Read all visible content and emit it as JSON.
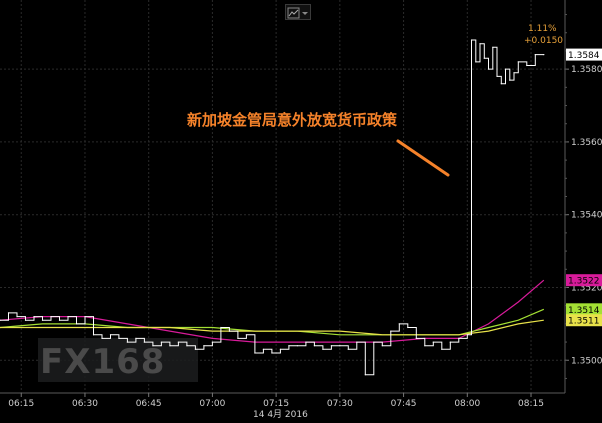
{
  "chart_data": {
    "type": "line",
    "title": "",
    "xlabel": "",
    "ylabel": "",
    "date_label": "14 4月 2016",
    "x_ticks": [
      "06:15",
      "06:30",
      "06:45",
      "07:00",
      "07:15",
      "07:30",
      "07:45",
      "08:00",
      "08:15"
    ],
    "y_ticks": [
      "1.3500",
      "1.3520",
      "1.3540",
      "1.3560",
      "1.3580"
    ],
    "ylim": [
      1.3491,
      1.3599
    ],
    "xlim": [
      "06:10",
      "08:23"
    ],
    "grid": true,
    "annotation": "新加坡金管局意外放宽货币政策",
    "change_pct": "1.11%",
    "change_abs": "+0.0150",
    "price_badges": [
      {
        "label": "1.3584",
        "value": 1.3584,
        "color": "#ffffff"
      },
      {
        "label": "1.3522",
        "value": 1.3522,
        "color": "#d81b9a"
      },
      {
        "label": "1.3514",
        "value": 1.3514,
        "color": "#a4e034"
      },
      {
        "label": "1.3511",
        "value": 1.3511,
        "color": "#e8e24a"
      }
    ],
    "price_series": {
      "name": "",
      "color": "#ffffff",
      "x": [
        "06:10",
        "06:12",
        "06:14",
        "06:16",
        "06:18",
        "06:20",
        "06:22",
        "06:24",
        "06:26",
        "06:28",
        "06:30",
        "06:32",
        "06:34",
        "06:36",
        "06:38",
        "06:40",
        "06:42",
        "06:44",
        "06:46",
        "06:48",
        "06:50",
        "06:52",
        "06:54",
        "06:56",
        "06:58",
        "07:00",
        "07:02",
        "07:04",
        "07:06",
        "07:08",
        "07:10",
        "07:12",
        "07:14",
        "07:16",
        "07:18",
        "07:20",
        "07:22",
        "07:24",
        "07:26",
        "07:28",
        "07:30",
        "07:32",
        "07:34",
        "07:36",
        "07:38",
        "07:40",
        "07:42",
        "07:44",
        "07:46",
        "07:48",
        "07:50",
        "07:52",
        "07:54",
        "07:56",
        "07:58",
        "08:00",
        "08:01",
        "08:02",
        "08:03",
        "08:04",
        "08:05",
        "08:06",
        "08:07",
        "08:08",
        "08:09",
        "08:10",
        "08:11",
        "08:12",
        "08:14",
        "08:16",
        "08:18"
      ],
      "values": [
        1.3511,
        1.3513,
        1.3512,
        1.3511,
        1.3512,
        1.3511,
        1.3512,
        1.3511,
        1.3512,
        1.351,
        1.3512,
        1.3507,
        1.3506,
        1.3507,
        1.3506,
        1.3505,
        1.3506,
        1.3505,
        1.3504,
        1.3505,
        1.3504,
        1.3505,
        1.3504,
        1.3503,
        1.3504,
        1.3505,
        1.3509,
        1.3508,
        1.3506,
        1.3507,
        1.3502,
        1.3503,
        1.3502,
        1.3503,
        1.3504,
        1.3504,
        1.3505,
        1.3504,
        1.3503,
        1.3504,
        1.3504,
        1.3503,
        1.3505,
        1.3496,
        1.3505,
        1.3504,
        1.3508,
        1.351,
        1.3509,
        1.3506,
        1.3504,
        1.3505,
        1.3503,
        1.3505,
        1.3506,
        1.3507,
        1.3588,
        1.3582,
        1.3587,
        1.3583,
        1.358,
        1.3586,
        1.3578,
        1.3576,
        1.358,
        1.3577,
        1.3579,
        1.3582,
        1.3581,
        1.3584,
        1.3584
      ]
    },
    "ma_series": [
      {
        "name": "",
        "color": "#d81b9a",
        "x": [
          "06:10",
          "06:20",
          "06:30",
          "06:40",
          "06:50",
          "07:00",
          "07:10",
          "07:20",
          "07:30",
          "07:40",
          "07:50",
          "07:58",
          "08:05",
          "08:12",
          "08:18"
        ],
        "values": [
          1.3511,
          1.3512,
          1.3512,
          1.351,
          1.3508,
          1.3506,
          1.3505,
          1.3505,
          1.3505,
          1.3505,
          1.3506,
          1.3506,
          1.351,
          1.3516,
          1.3522
        ]
      },
      {
        "name": "",
        "color": "#a4e034",
        "x": [
          "06:10",
          "06:20",
          "06:30",
          "06:40",
          "06:50",
          "07:00",
          "07:10",
          "07:20",
          "07:30",
          "07:40",
          "07:50",
          "07:58",
          "08:05",
          "08:12",
          "08:18"
        ],
        "values": [
          1.3509,
          1.351,
          1.351,
          1.3509,
          1.3509,
          1.3509,
          1.3508,
          1.3508,
          1.3507,
          1.3507,
          1.3507,
          1.3507,
          1.3509,
          1.3511,
          1.3514
        ]
      },
      {
        "name": "",
        "color": "#e8e24a",
        "x": [
          "06:10",
          "06:20",
          "06:30",
          "06:40",
          "06:50",
          "07:00",
          "07:10",
          "07:20",
          "07:30",
          "07:40",
          "07:50",
          "07:58",
          "08:05",
          "08:12",
          "08:18"
        ],
        "values": [
          1.3509,
          1.3509,
          1.3509,
          1.3509,
          1.3509,
          1.3508,
          1.3508,
          1.3508,
          1.3508,
          1.3507,
          1.3507,
          1.3507,
          1.3508,
          1.351,
          1.3511
        ]
      }
    ]
  },
  "watermark": "FX168",
  "toolbar": {
    "icon": "chart-type-icon"
  }
}
